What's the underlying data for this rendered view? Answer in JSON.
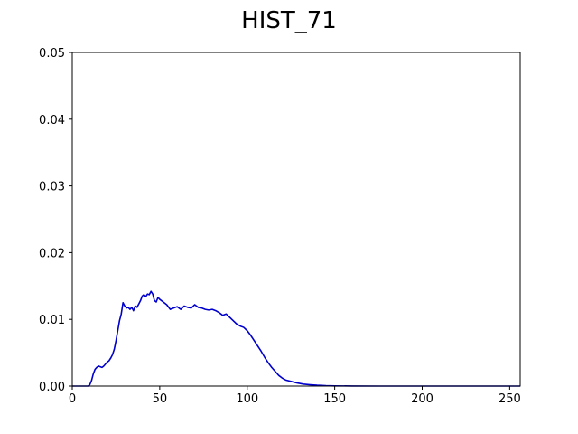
{
  "chart_data": {
    "type": "line",
    "title": "HIST_71",
    "xlabel": "",
    "ylabel": "",
    "xlim": [
      0,
      256
    ],
    "ylim": [
      0,
      0.05
    ],
    "grid": false,
    "x_ticks": [
      "0",
      "50",
      "100",
      "150",
      "200",
      "250"
    ],
    "y_ticks": [
      "0.00",
      "0.01",
      "0.02",
      "0.03",
      "0.04",
      "0.05"
    ],
    "series": [
      {
        "color": "#0000cc",
        "x": [
          0,
          5,
          9,
          10,
          11,
          12,
          13,
          14,
          15,
          16,
          17,
          18,
          19,
          20,
          21,
          22,
          23,
          24,
          25,
          26,
          27,
          28,
          29,
          30,
          31,
          32,
          33,
          34,
          35,
          36,
          37,
          38,
          39,
          40,
          41,
          42,
          43,
          44,
          45,
          46,
          47,
          48,
          49,
          50,
          52,
          54,
          56,
          58,
          60,
          62,
          64,
          66,
          68,
          70,
          72,
          74,
          76,
          78,
          80,
          82,
          84,
          86,
          88,
          90,
          92,
          94,
          96,
          98,
          100,
          102,
          104,
          106,
          108,
          110,
          112,
          114,
          116,
          118,
          120,
          122,
          125,
          128,
          132,
          136,
          140,
          145,
          150,
          160,
          175,
          200,
          225,
          256
        ],
        "y": [
          0,
          0,
          0,
          0.0002,
          0.0008,
          0.0018,
          0.0025,
          0.0028,
          0.003,
          0.0029,
          0.0028,
          0.003,
          0.0033,
          0.0036,
          0.0038,
          0.0042,
          0.0047,
          0.0055,
          0.0068,
          0.0083,
          0.0098,
          0.0108,
          0.0125,
          0.012,
          0.0117,
          0.0118,
          0.0115,
          0.0118,
          0.0113,
          0.012,
          0.0118,
          0.0123,
          0.0128,
          0.0135,
          0.0137,
          0.0134,
          0.0138,
          0.0137,
          0.0142,
          0.0138,
          0.0128,
          0.0126,
          0.0133,
          0.013,
          0.0126,
          0.0122,
          0.0115,
          0.0117,
          0.0119,
          0.0115,
          0.012,
          0.0118,
          0.0117,
          0.0122,
          0.0118,
          0.0117,
          0.0115,
          0.0114,
          0.0115,
          0.0113,
          0.011,
          0.0106,
          0.0108,
          0.0103,
          0.0098,
          0.0093,
          0.009,
          0.0088,
          0.0083,
          0.0076,
          0.0068,
          0.006,
          0.0052,
          0.0043,
          0.0035,
          0.0028,
          0.0022,
          0.0016,
          0.0012,
          0.0009,
          0.0007,
          0.0005,
          0.0003,
          0.0002,
          0.00012,
          6e-05,
          3e-05,
          1e-05,
          0,
          0,
          0,
          0
        ]
      }
    ]
  }
}
